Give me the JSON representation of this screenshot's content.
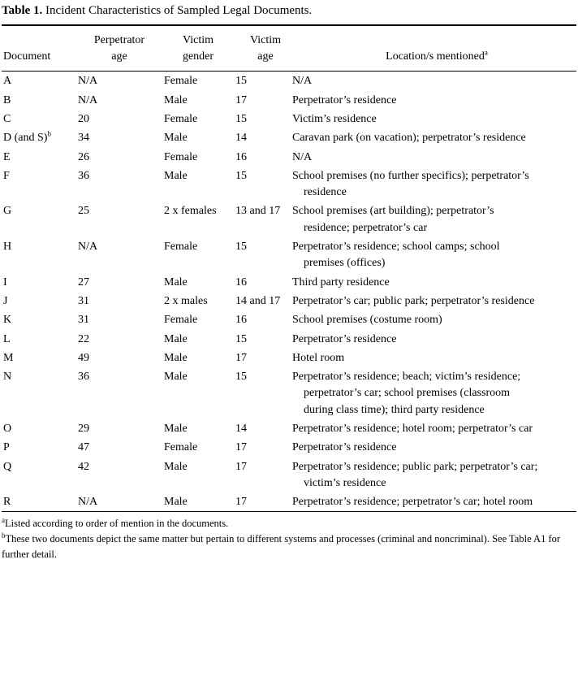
{
  "title": {
    "label": "Table 1.",
    "text": " Incident Characteristics of Sampled Legal Documents."
  },
  "table": {
    "header": {
      "document": "Document",
      "perp_line1": "Perpetrator",
      "perp_line2": "age",
      "gender_line1": "Victim",
      "gender_line2": "gender",
      "age_line1": "Victim",
      "age_line2": "age",
      "location": "Location/s mentioned",
      "location_sup": "a"
    },
    "rows": [
      {
        "doc": "A",
        "doc_sup": "",
        "perp_age": "N/A",
        "victim_gender": "Female",
        "victim_age": "15",
        "locations": "N/A"
      },
      {
        "doc": "B",
        "doc_sup": "",
        "perp_age": "N/A",
        "victim_gender": "Male",
        "victim_age": "17",
        "locations": "Perpetrator’s residence"
      },
      {
        "doc": "C",
        "doc_sup": "",
        "perp_age": "20",
        "victim_gender": "Female",
        "victim_age": "15",
        "locations": "Victim’s residence"
      },
      {
        "doc": "D (and S)",
        "doc_sup": "b",
        "perp_age": "34",
        "victim_gender": "Male",
        "victim_age": "14",
        "locations": "Caravan park (on vacation); perpetrator’s residence"
      },
      {
        "doc": "E",
        "doc_sup": "",
        "perp_age": "26",
        "victim_gender": "Female",
        "victim_age": "16",
        "locations": "N/A"
      },
      {
        "doc": "F",
        "doc_sup": "",
        "perp_age": "36",
        "victim_gender": "Male",
        "victim_age": "15",
        "locations": "School premises (no further specifics); perpetrator’s residence"
      },
      {
        "doc": "G",
        "doc_sup": "",
        "perp_age": "25",
        "victim_gender": "2 x females",
        "victim_age": "13 and 17",
        "locations": "School premises (art building); perpetrator’s residence; perpetrator’s car"
      },
      {
        "doc": "H",
        "doc_sup": "",
        "perp_age": "N/A",
        "victim_gender": "Female",
        "victim_age": "15",
        "locations": "Perpetrator’s residence; school camps; school premises (offices)"
      },
      {
        "doc": "I",
        "doc_sup": "",
        "perp_age": "27",
        "victim_gender": "Male",
        "victim_age": "16",
        "locations": "Third party residence"
      },
      {
        "doc": "J",
        "doc_sup": "",
        "perp_age": "31",
        "victim_gender": "2 x males",
        "victim_age": "14 and 17",
        "locations": "Perpetrator’s car; public park; perpetrator’s residence"
      },
      {
        "doc": "K",
        "doc_sup": "",
        "perp_age": "31",
        "victim_gender": "Female",
        "victim_age": "16",
        "locations": "School premises (costume room)"
      },
      {
        "doc": "L",
        "doc_sup": "",
        "perp_age": "22",
        "victim_gender": "Male",
        "victim_age": "15",
        "locations": "Perpetrator’s residence"
      },
      {
        "doc": "M",
        "doc_sup": "",
        "perp_age": "49",
        "victim_gender": "Male",
        "victim_age": "17",
        "locations": "Hotel room"
      },
      {
        "doc": "N",
        "doc_sup": "",
        "perp_age": "36",
        "victim_gender": "Male",
        "victim_age": "15",
        "locations": "Perpetrator’s residence; beach; victim’s residence; perpetrator’s car; school premises (classroom during class time); third party residence"
      },
      {
        "doc": "O",
        "doc_sup": "",
        "perp_age": "29",
        "victim_gender": "Male",
        "victim_age": "14",
        "locations": "Perpetrator’s residence; hotel room; perpetrator’s car"
      },
      {
        "doc": "P",
        "doc_sup": "",
        "perp_age": "47",
        "victim_gender": "Female",
        "victim_age": "17",
        "locations": "Perpetrator’s residence"
      },
      {
        "doc": "Q",
        "doc_sup": "",
        "perp_age": "42",
        "victim_gender": "Male",
        "victim_age": "17",
        "locations": "Perpetrator’s residence; public park; perpetrator’s car; victim’s residence"
      },
      {
        "doc": "R",
        "doc_sup": "",
        "perp_age": "N/A",
        "victim_gender": "Male",
        "victim_age": "17",
        "locations": "Perpetrator’s residence; perpetrator’s car; hotel room"
      }
    ]
  },
  "footnotes": [
    {
      "sup": "a",
      "text": "Listed according to order of mention in the documents."
    },
    {
      "sup": "b",
      "text": "These two documents depict the same matter but pertain to different systems and processes (criminal and noncriminal). See Table A1 for further detail."
    }
  ]
}
